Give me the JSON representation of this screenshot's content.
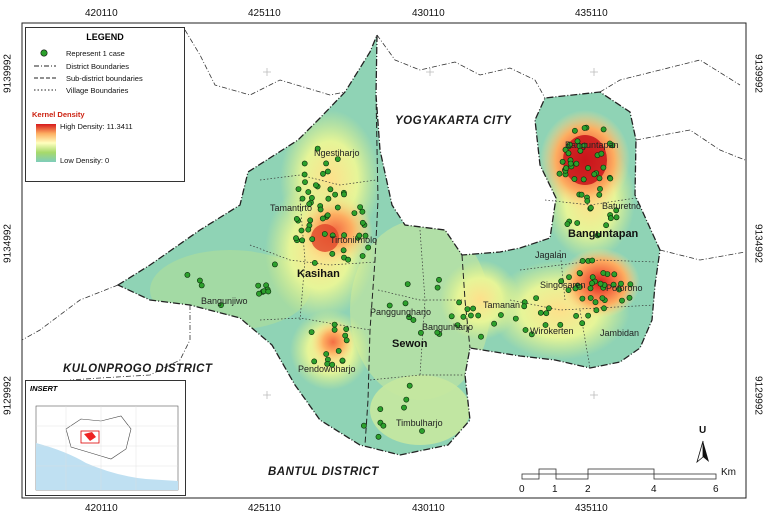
{
  "map": {
    "coords": {
      "top": [
        "420110",
        "425110",
        "430110",
        "435110"
      ],
      "bottom": [
        "420110",
        "425110",
        "430110",
        "435110"
      ],
      "left": [
        "9139992",
        "9134992",
        "9129992"
      ],
      "right": [
        "9139992",
        "9134992",
        "9129992"
      ]
    },
    "regions": {
      "yogyakarta": "YOGYAKARTA CITY",
      "kulonprogo": "KULONPROGO DISTRICT",
      "bantul": "BANTUL DISTRICT"
    },
    "subdistricts": {
      "kasihan": "Kasihan",
      "sewon": "Sewon",
      "banguntapan": "Banguntapan"
    },
    "villages": {
      "ngestiharjo": "Ngestiharjo",
      "tamantirto": "Tamantirto",
      "tirtonirmolo": "Tirtonirmolo",
      "bangunjiwo": "Bangunjiwo",
      "panggungharjo": "Panggungharjo",
      "bangunharjo": "Bangunharjo",
      "pendowoharjo": "Pendowoharjo",
      "timbulharjo": "Timbulharjo",
      "tamanan": "Tamanan",
      "jagalan": "Jagalan",
      "singosaren": "Singosaren",
      "wirokerten": "Wirokerten",
      "potorono": "Potorono",
      "jambidan": "Jambidan",
      "baturetno": "Baturetno",
      "banguntapan_village": "Banguntapan"
    }
  },
  "legend": {
    "title": "LEGEND",
    "case_label": "Represent 1 case",
    "district_boundaries": "District Boundaries",
    "subdistrict_boundaries": "Sub-district boundaries",
    "village_boundaries": "Village Boundaries",
    "kernel_title": "Kernel Density",
    "high": "High Density: 11.3411",
    "low": "Low Density: 0"
  },
  "insert": {
    "title": "INSERT"
  },
  "scale": {
    "ticks": [
      "0",
      "1",
      "2",
      "4",
      "6"
    ],
    "unit": "Km"
  },
  "north": {
    "letter": "U"
  },
  "colors": {
    "high": "#d7191c",
    "mid": "#ffffbf",
    "low": "#7fcdbb",
    "case_dot": "#2ca02c"
  }
}
